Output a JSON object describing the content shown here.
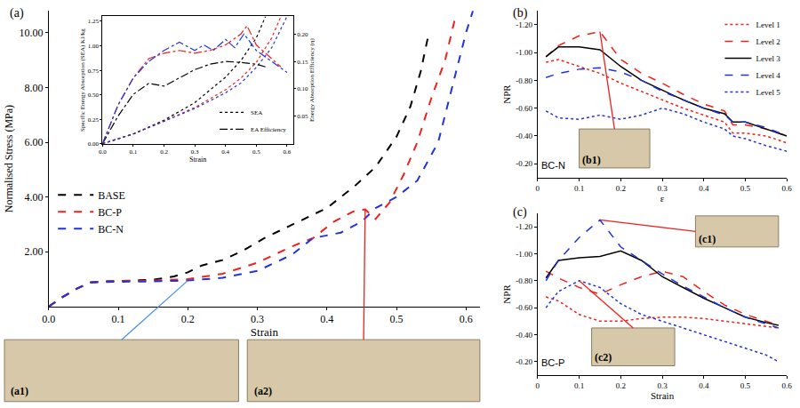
{
  "chart_data": [
    {
      "panel": "(a)",
      "type": "line",
      "x_label": "Strain",
      "y_label": "Normalised Stress (MPa)",
      "xlim": [
        0,
        0.62
      ],
      "xticks": [
        {
          "value": 0,
          "label": "0.0"
        },
        0.1,
        0.2,
        0.3,
        0.4,
        0.5,
        0.6
      ],
      "ylim": [
        0,
        10.8
      ],
      "yticks": [
        {
          "value": 2,
          "label": "2.00"
        },
        {
          "value": 4,
          "label": "4.00"
        },
        {
          "value": 6,
          "label": "6.00"
        },
        {
          "value": 8,
          "label": "8.00"
        },
        {
          "value": 10,
          "label": "10.00"
        }
      ],
      "legend": "middle left",
      "line_style": "dash",
      "series": [
        {
          "name": "BASE",
          "color": "#000000",
          "x": [
            0,
            0.02,
            0.04,
            0.06,
            0.08,
            0.1,
            0.12,
            0.15,
            0.18,
            0.2,
            0.22,
            0.25,
            0.28,
            0.31,
            0.35,
            0.4,
            0.44,
            0.47,
            0.5,
            0.52,
            0.535,
            0.545
          ],
          "values": [
            0,
            0.35,
            0.65,
            0.88,
            0.92,
            0.93,
            0.95,
            0.98,
            1.1,
            1.25,
            1.5,
            1.7,
            2.05,
            2.5,
            3.0,
            3.6,
            4.4,
            5.1,
            6.2,
            7.3,
            8.6,
            9.8
          ]
        },
        {
          "name": "BC-P",
          "color": "#f0201c",
          "x": [
            0,
            0.02,
            0.04,
            0.06,
            0.08,
            0.1,
            0.15,
            0.2,
            0.25,
            0.3,
            0.35,
            0.38,
            0.41,
            0.44,
            0.455,
            0.47,
            0.49,
            0.51,
            0.53,
            0.55,
            0.57,
            0.585
          ],
          "values": [
            0,
            0.35,
            0.65,
            0.88,
            0.92,
            0.93,
            0.95,
            1.0,
            1.2,
            1.6,
            2.2,
            2.5,
            3.1,
            3.5,
            3.55,
            3.2,
            3.8,
            4.8,
            6.0,
            7.6,
            9.0,
            10.6
          ]
        },
        {
          "name": "BC-N",
          "color": "#2233dd",
          "x": [
            0,
            0.02,
            0.04,
            0.06,
            0.08,
            0.1,
            0.15,
            0.2,
            0.25,
            0.3,
            0.35,
            0.38,
            0.42,
            0.45,
            0.47,
            0.5,
            0.53,
            0.56,
            0.58,
            0.6,
            0.61
          ],
          "values": [
            0,
            0.35,
            0.65,
            0.88,
            0.9,
            0.9,
            0.92,
            0.95,
            1.05,
            1.3,
            1.9,
            2.5,
            2.7,
            3.1,
            3.6,
            4.0,
            4.6,
            6.0,
            8.0,
            10.0,
            10.8
          ]
        }
      ],
      "images": [
        "(a1)",
        "(a2)"
      ]
    },
    {
      "type": "line",
      "x_label": "Strain",
      "y_label": "Specific Energy Absorption (SEA) KJ/kg",
      "y2_label": "Energy Absorption Efficiency (η)",
      "xlim": [
        0,
        0.62
      ],
      "xticks": [
        {
          "value": 0,
          "label": "0.0"
        },
        0.1,
        0.2,
        0.3,
        0.4,
        0.5,
        0.6
      ],
      "ylim": [
        0,
        1.3
      ],
      "yticks": [
        {
          "value": 0,
          "label": "0.00"
        },
        0.25,
        {
          "value": 0.5,
          "label": "0.50"
        },
        0.75,
        {
          "value": 1,
          "label": "1.00"
        },
        1.25
      ],
      "y2lim": [
        0,
        0.232
      ],
      "y2ticks": [
        0.05,
        {
          "value": 0.1,
          "label": "0.10"
        },
        0.15,
        {
          "value": 0.2,
          "label": "0.20"
        }
      ],
      "legend": "bottom right",
      "series": [
        {
          "name": "SEA",
          "line_style": "dot",
          "curves": [
            {
              "color": "#000000",
              "x": [
                0,
                0.1,
                0.2,
                0.3,
                0.4,
                0.45,
                0.5,
                0.53
              ],
              "values": [
                0,
                0.1,
                0.24,
                0.42,
                0.68,
                0.85,
                1.08,
                1.3
              ]
            },
            {
              "color": "#f0201c",
              "x": [
                0,
                0.1,
                0.2,
                0.3,
                0.4,
                0.45,
                0.5,
                0.55,
                0.58
              ],
              "values": [
                0,
                0.1,
                0.23,
                0.37,
                0.55,
                0.67,
                0.83,
                1.08,
                1.3
              ]
            },
            {
              "color": "#2233dd",
              "x": [
                0,
                0.1,
                0.2,
                0.3,
                0.4,
                0.45,
                0.5,
                0.55,
                0.6
              ],
              "values": [
                0,
                0.1,
                0.23,
                0.36,
                0.52,
                0.62,
                0.78,
                0.98,
                1.3
              ]
            }
          ]
        },
        {
          "name": "EA Efficiency",
          "line_style": "dashdot",
          "axis": "y2",
          "curves": [
            {
              "color": "#000000",
              "x": [
                0,
                0.05,
                0.1,
                0.15,
                0.2,
                0.25,
                0.3,
                0.35,
                0.4,
                0.45,
                0.5,
                0.53
              ],
              "values": [
                0,
                0.05,
                0.09,
                0.11,
                0.105,
                0.12,
                0.135,
                0.145,
                0.15,
                0.148,
                0.145,
                0.14
              ]
            },
            {
              "color": "#f0201c",
              "x": [
                0,
                0.05,
                0.1,
                0.15,
                0.2,
                0.25,
                0.3,
                0.35,
                0.4,
                0.45,
                0.47,
                0.5,
                0.55,
                0.58
              ],
              "values": [
                0,
                0.07,
                0.12,
                0.155,
                0.165,
                0.17,
                0.165,
                0.17,
                0.18,
                0.2,
                0.215,
                0.18,
                0.155,
                0.14
              ]
            },
            {
              "color": "#2233dd",
              "x": [
                0,
                0.05,
                0.1,
                0.15,
                0.2,
                0.25,
                0.3,
                0.33,
                0.36,
                0.4,
                0.43,
                0.46,
                0.5,
                0.55,
                0.6
              ],
              "values": [
                0,
                0.07,
                0.12,
                0.15,
                0.17,
                0.185,
                0.17,
                0.18,
                0.17,
                0.19,
                0.175,
                0.2,
                0.17,
                0.15,
                0.13
              ]
            }
          ]
        }
      ]
    },
    {
      "panel": "(b)",
      "type": "line",
      "annotation": "BC-N",
      "x_label": "ε",
      "y_label": "NPR",
      "xlim": [
        0,
        0.6
      ],
      "xticks": [
        0,
        0.1,
        0.2,
        0.3,
        0.4,
        0.5,
        0.6
      ],
      "ylim": [
        -0.1,
        -1.3
      ],
      "yticks": [
        {
          "value": -1.2,
          "label": "-1.20"
        },
        {
          "value": -1,
          "label": "-1.00"
        },
        {
          "value": -0.8,
          "label": "-0.80"
        },
        {
          "value": -0.6,
          "label": "-0.60"
        },
        {
          "value": -0.4,
          "label": "-0.40"
        },
        {
          "value": -0.2,
          "label": "-0.20"
        }
      ],
      "legend": "top right",
      "x": [
        0.02,
        0.05,
        0.1,
        0.15,
        0.2,
        0.25,
        0.3,
        0.35,
        0.4,
        0.45,
        0.47,
        0.5,
        0.55,
        0.6
      ],
      "series": [
        {
          "name": "Level 1",
          "color": "#f0201c",
          "line_style": "dot",
          "values": [
            -0.93,
            -0.95,
            -0.9,
            -0.85,
            -0.78,
            -0.72,
            -0.66,
            -0.6,
            -0.55,
            -0.5,
            -0.42,
            -0.42,
            -0.4,
            -0.35
          ]
        },
        {
          "name": "Level 2",
          "color": "#f0201c",
          "line_style": "dash",
          "values": [
            -0.97,
            -1.05,
            -1.12,
            -1.15,
            -0.95,
            -0.85,
            -0.78,
            -0.7,
            -0.63,
            -0.58,
            -0.48,
            -0.48,
            -0.45,
            -0.4
          ]
        },
        {
          "name": "Level 3",
          "color": "#000000",
          "line_style": "solid",
          "values": [
            -0.97,
            -1.04,
            -1.04,
            -1.02,
            -0.9,
            -0.8,
            -0.73,
            -0.66,
            -0.6,
            -0.56,
            -0.5,
            -0.5,
            -0.45,
            -0.4
          ]
        },
        {
          "name": "Level 4",
          "color": "#2233dd",
          "line_style": "dash",
          "values": [
            -0.82,
            -0.85,
            -0.88,
            -0.89,
            -0.86,
            -0.8,
            -0.72,
            -0.66,
            -0.6,
            -0.55,
            -0.5,
            -0.5,
            -0.46,
            -0.4
          ]
        },
        {
          "name": "Level 5",
          "color": "#2233dd",
          "line_style": "dot",
          "values": [
            -0.58,
            -0.53,
            -0.52,
            -0.55,
            -0.52,
            -0.55,
            -0.6,
            -0.56,
            -0.5,
            -0.45,
            -0.4,
            -0.38,
            -0.33,
            -0.29
          ]
        }
      ],
      "images": [
        "(b1)"
      ]
    },
    {
      "panel": "(c)",
      "type": "line",
      "annotation": "BC-P",
      "x_label": "Strain",
      "y_label": "NPR",
      "xlim": [
        0,
        0.6
      ],
      "xticks": [
        0,
        0.1,
        0.2,
        0.3,
        0.4,
        0.5,
        0.6
      ],
      "ylim": [
        -0.1,
        -1.3
      ],
      "yticks": [
        {
          "value": -1.2,
          "label": "-1.20"
        },
        {
          "value": -1,
          "label": "-1.00"
        },
        {
          "value": -0.8,
          "label": "-0.80"
        },
        {
          "value": -0.6,
          "label": "-0.60"
        },
        {
          "value": -0.4,
          "label": "-0.40"
        },
        {
          "value": -0.2,
          "label": "-0.20"
        }
      ],
      "x": [
        0.02,
        0.05,
        0.1,
        0.15,
        0.2,
        0.25,
        0.3,
        0.35,
        0.4,
        0.45,
        0.5,
        0.55,
        0.58
      ],
      "series": [
        {
          "name": "Level 1",
          "color": "#f0201c",
          "line_style": "dot",
          "values": [
            -0.68,
            -0.65,
            -0.55,
            -0.5,
            -0.5,
            -0.52,
            -0.53,
            -0.53,
            -0.52,
            -0.5,
            -0.48,
            -0.46,
            -0.45
          ]
        },
        {
          "name": "Level 2",
          "color": "#f0201c",
          "line_style": "dash",
          "values": [
            -0.87,
            -0.82,
            -0.75,
            -0.7,
            -0.77,
            -0.83,
            -0.87,
            -0.83,
            -0.72,
            -0.62,
            -0.55,
            -0.5,
            -0.47
          ]
        },
        {
          "name": "Level 3",
          "color": "#000000",
          "line_style": "solid",
          "values": [
            -0.82,
            -0.95,
            -0.97,
            -0.98,
            -1.02,
            -0.95,
            -0.83,
            -0.75,
            -0.67,
            -0.6,
            -0.53,
            -0.49,
            -0.47
          ]
        },
        {
          "name": "Level 4",
          "color": "#2233dd",
          "line_style": "dash",
          "values": [
            -0.8,
            -0.95,
            -1.12,
            -1.25,
            -1.05,
            -0.95,
            -0.85,
            -0.76,
            -0.68,
            -0.6,
            -0.53,
            -0.48,
            -0.45
          ]
        },
        {
          "name": "Level 5",
          "color": "#2233dd",
          "line_style": "dot",
          "values": [
            -0.6,
            -0.72,
            -0.8,
            -0.75,
            -0.63,
            -0.55,
            -0.5,
            -0.45,
            -0.4,
            -0.35,
            -0.3,
            -0.25,
            -0.2
          ]
        }
      ],
      "images": [
        "(c1)",
        "(c2)"
      ]
    }
  ]
}
